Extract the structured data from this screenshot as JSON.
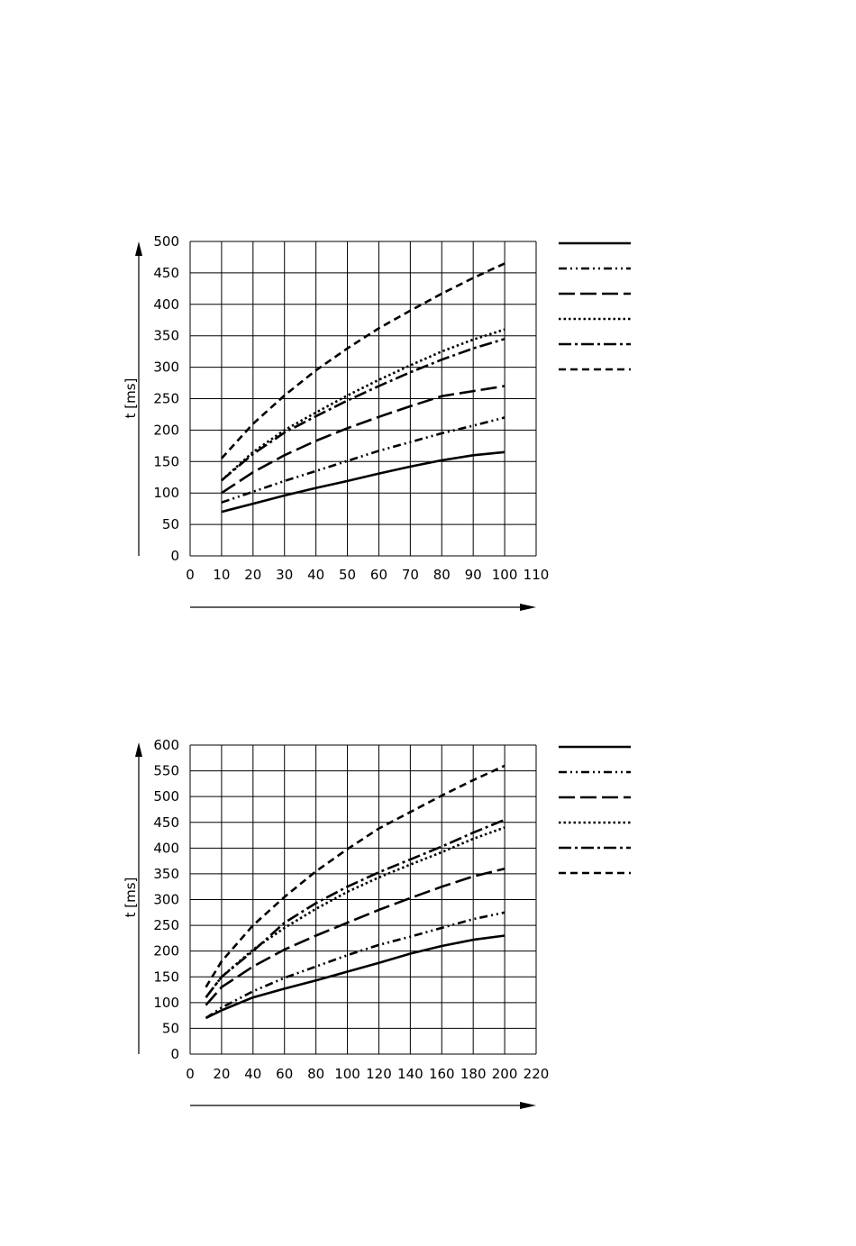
{
  "chart_data": [
    {
      "type": "line",
      "title": "",
      "ylabel": "t [ms]",
      "xlabel": "",
      "xlim": [
        0,
        110
      ],
      "ylim": [
        0,
        500
      ],
      "x_ticks": [
        "0",
        "10",
        "20",
        "30",
        "40",
        "50",
        "60",
        "70",
        "80",
        "90",
        "100",
        "110"
      ],
      "y_ticks": [
        "0",
        "50",
        "100",
        "150",
        "200",
        "250",
        "300",
        "350",
        "400",
        "450",
        "500"
      ],
      "grid": true,
      "legend": "top-right, line samples without labels",
      "series": [
        {
          "style": "solid",
          "x": [
            10,
            20,
            30,
            40,
            50,
            60,
            70,
            80,
            90,
            100
          ],
          "y": [
            70,
            83,
            96,
            108,
            119,
            131,
            142,
            152,
            160,
            165
          ]
        },
        {
          "style": "dash-dot-dot",
          "x": [
            10,
            20,
            30,
            40,
            50,
            60,
            70,
            80,
            90,
            100
          ],
          "y": [
            85,
            102,
            119,
            135,
            151,
            167,
            181,
            195,
            207,
            220
          ]
        },
        {
          "style": "long-dash",
          "x": [
            10,
            20,
            30,
            40,
            50,
            60,
            70,
            80,
            90,
            100
          ],
          "y": [
            100,
            133,
            160,
            183,
            203,
            221,
            238,
            254,
            262,
            270
          ]
        },
        {
          "style": "dotted",
          "x": [
            10,
            20,
            30,
            40,
            50,
            60,
            70,
            80,
            90,
            100
          ],
          "y": [
            120,
            165,
            200,
            228,
            255,
            280,
            303,
            325,
            344,
            360
          ]
        },
        {
          "style": "dash-dot",
          "x": [
            10,
            20,
            30,
            40,
            50,
            60,
            70,
            80,
            90,
            100
          ],
          "y": [
            120,
            162,
            196,
            222,
            247,
            270,
            292,
            312,
            330,
            345
          ]
        },
        {
          "style": "short-dash",
          "x": [
            10,
            20,
            30,
            40,
            50,
            60,
            70,
            80,
            90,
            100
          ],
          "y": [
            155,
            210,
            255,
            295,
            330,
            362,
            390,
            417,
            442,
            465
          ]
        }
      ]
    },
    {
      "type": "line",
      "title": "",
      "ylabel": "t [ms]",
      "xlabel": "",
      "xlim": [
        0,
        220
      ],
      "ylim": [
        0,
        600
      ],
      "x_ticks": [
        "0",
        "20",
        "40",
        "60",
        "80",
        "100",
        "120",
        "140",
        "160",
        "180",
        "200",
        "220"
      ],
      "y_ticks": [
        "0",
        "50",
        "100",
        "150",
        "200",
        "250",
        "300",
        "350",
        "400",
        "450",
        "500",
        "550",
        "600"
      ],
      "grid": true,
      "legend": "top-right, line samples without labels",
      "series": [
        {
          "style": "solid",
          "x": [
            10,
            20,
            40,
            60,
            80,
            100,
            120,
            140,
            160,
            180,
            200
          ],
          "y": [
            70,
            85,
            110,
            127,
            143,
            160,
            177,
            195,
            210,
            222,
            230
          ]
        },
        {
          "style": "dash-dot-dot",
          "x": [
            10,
            20,
            40,
            60,
            80,
            100,
            120,
            140,
            160,
            180,
            200
          ],
          "y": [
            70,
            90,
            122,
            148,
            170,
            192,
            212,
            228,
            245,
            262,
            275
          ]
        },
        {
          "style": "long-dash",
          "x": [
            10,
            20,
            40,
            60,
            80,
            100,
            120,
            140,
            160,
            180,
            200
          ],
          "y": [
            95,
            130,
            170,
            203,
            230,
            255,
            280,
            303,
            325,
            345,
            360
          ]
        },
        {
          "style": "dotted",
          "x": [
            10,
            20,
            40,
            60,
            80,
            100,
            120,
            140,
            160,
            180,
            200
          ],
          "y": [
            110,
            150,
            203,
            245,
            282,
            315,
            343,
            368,
            392,
            418,
            440
          ]
        },
        {
          "style": "dash-dot",
          "x": [
            10,
            20,
            40,
            60,
            80,
            100,
            120,
            140,
            160,
            180,
            200
          ],
          "y": [
            110,
            150,
            200,
            255,
            293,
            325,
            353,
            378,
            403,
            430,
            455
          ]
        },
        {
          "style": "short-dash",
          "x": [
            10,
            20,
            40,
            60,
            80,
            100,
            120,
            140,
            160,
            180,
            200
          ],
          "y": [
            130,
            180,
            250,
            305,
            355,
            398,
            438,
            470,
            502,
            532,
            560
          ]
        }
      ]
    }
  ]
}
